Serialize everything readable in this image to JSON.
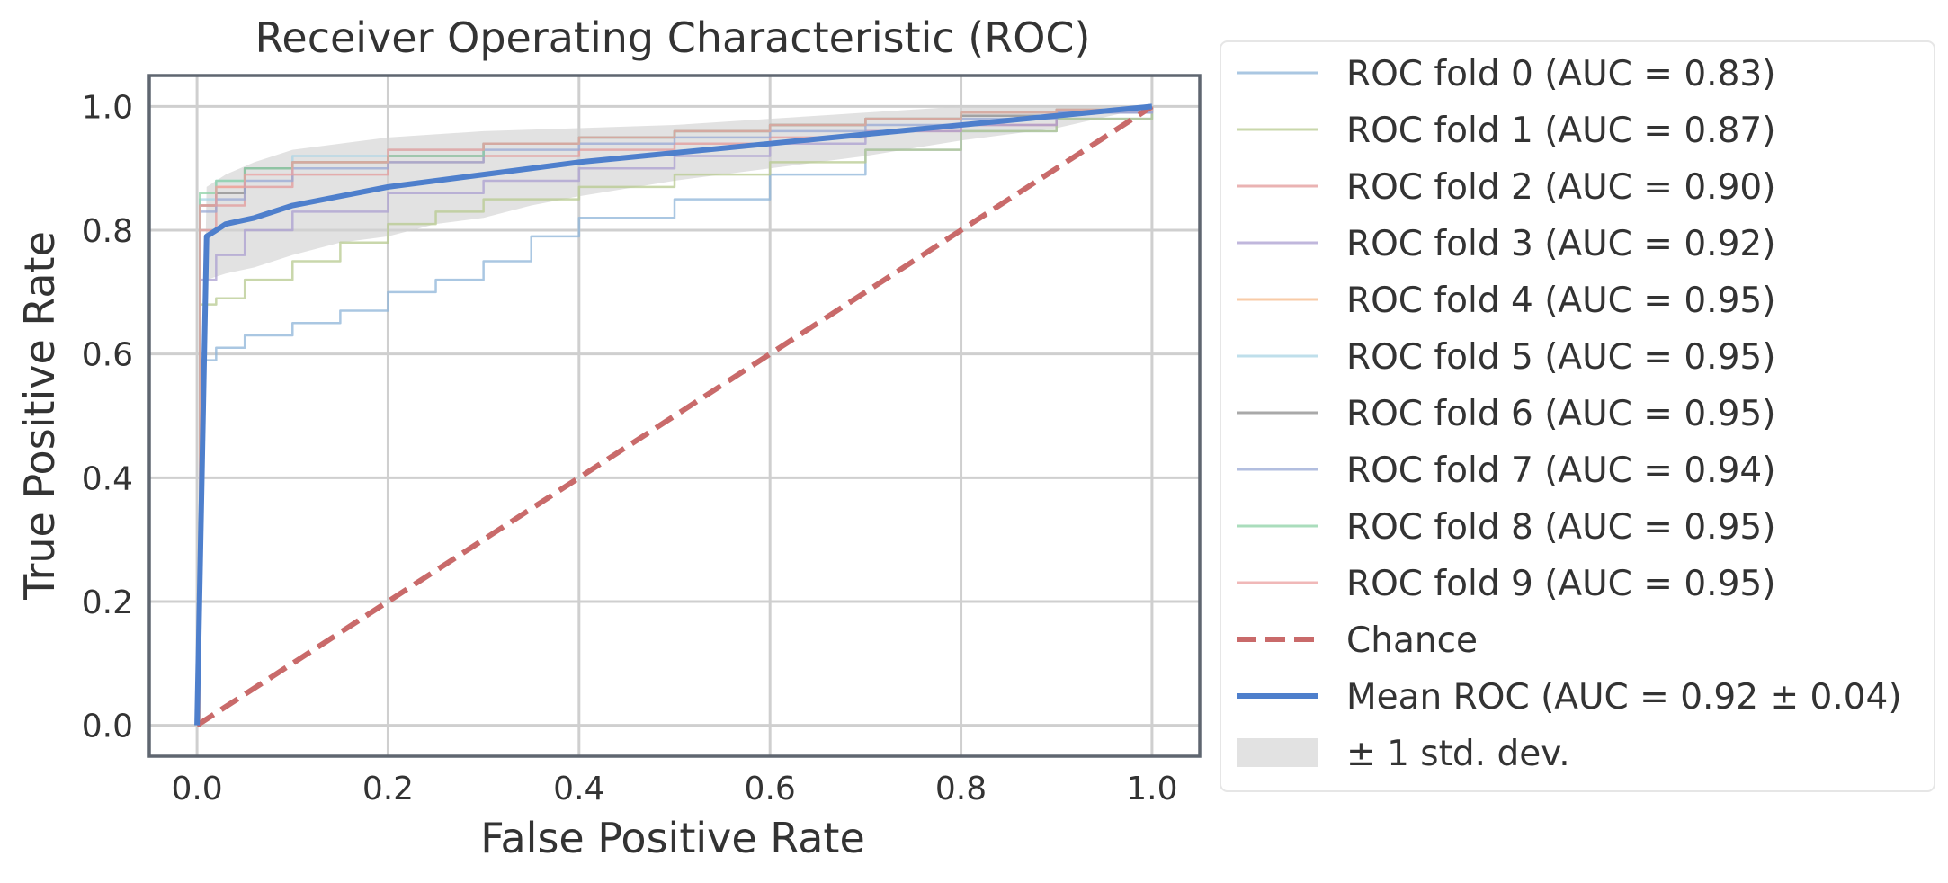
{
  "chart_data": {
    "type": "line",
    "title": "Receiver Operating Characteristic (ROC)",
    "xlabel": "False Positive Rate",
    "ylabel": "True Positive Rate",
    "xlim": [
      -0.05,
      1.05
    ],
    "ylim": [
      -0.05,
      1.05
    ],
    "xticks": [
      "0.0",
      "0.2",
      "0.4",
      "0.6",
      "0.8",
      "1.0"
    ],
    "yticks": [
      "0.0",
      "0.2",
      "0.4",
      "0.6",
      "0.8",
      "1.0"
    ],
    "grid": true,
    "legend_position": "outside-right",
    "series": [
      {
        "name": "ROC fold 0 (AUC = 0.83)",
        "color": "#8db4d8",
        "style": "thin",
        "points": [
          [
            0,
            0
          ],
          [
            0.003,
            0.59
          ],
          [
            0.02,
            0.61
          ],
          [
            0.05,
            0.63
          ],
          [
            0.1,
            0.65
          ],
          [
            0.15,
            0.67
          ],
          [
            0.2,
            0.7
          ],
          [
            0.25,
            0.72
          ],
          [
            0.3,
            0.75
          ],
          [
            0.35,
            0.79
          ],
          [
            0.4,
            0.82
          ],
          [
            0.5,
            0.85
          ],
          [
            0.6,
            0.89
          ],
          [
            0.7,
            0.93
          ],
          [
            0.8,
            0.96
          ],
          [
            0.9,
            0.98
          ],
          [
            1,
            1
          ]
        ]
      },
      {
        "name": "ROC fold 1 (AUC = 0.87)",
        "color": "#b7c98f",
        "style": "thin",
        "points": [
          [
            0,
            0
          ],
          [
            0.003,
            0.68
          ],
          [
            0.02,
            0.69
          ],
          [
            0.05,
            0.72
          ],
          [
            0.1,
            0.75
          ],
          [
            0.15,
            0.78
          ],
          [
            0.2,
            0.81
          ],
          [
            0.25,
            0.83
          ],
          [
            0.3,
            0.85
          ],
          [
            0.4,
            0.87
          ],
          [
            0.5,
            0.89
          ],
          [
            0.6,
            0.91
          ],
          [
            0.7,
            0.93
          ],
          [
            0.8,
            0.96
          ],
          [
            0.9,
            0.98
          ],
          [
            1,
            1
          ]
        ]
      },
      {
        "name": "ROC fold 2 (AUC = 0.90)",
        "color": "#e39a9a",
        "style": "thin",
        "points": [
          [
            0,
            0
          ],
          [
            0.003,
            0.8
          ],
          [
            0.02,
            0.84
          ],
          [
            0.05,
            0.87
          ],
          [
            0.1,
            0.89
          ],
          [
            0.2,
            0.91
          ],
          [
            0.3,
            0.92
          ],
          [
            0.4,
            0.93
          ],
          [
            0.5,
            0.94
          ],
          [
            0.6,
            0.95
          ],
          [
            0.7,
            0.96
          ],
          [
            0.8,
            0.97
          ],
          [
            0.9,
            0.99
          ],
          [
            1,
            1
          ]
        ]
      },
      {
        "name": "ROC fold 3 (AUC = 0.92)",
        "color": "#ab9fd0",
        "style": "thin",
        "points": [
          [
            0,
            0
          ],
          [
            0.003,
            0.72
          ],
          [
            0.02,
            0.76
          ],
          [
            0.05,
            0.8
          ],
          [
            0.1,
            0.83
          ],
          [
            0.2,
            0.86
          ],
          [
            0.3,
            0.88
          ],
          [
            0.4,
            0.9
          ],
          [
            0.5,
            0.92
          ],
          [
            0.6,
            0.94
          ],
          [
            0.7,
            0.96
          ],
          [
            0.8,
            0.97
          ],
          [
            0.9,
            0.99
          ],
          [
            1,
            1
          ]
        ]
      },
      {
        "name": "ROC fold 4 (AUC = 0.95)",
        "color": "#f5b98a",
        "style": "thin",
        "points": [
          [
            0,
            0
          ],
          [
            0.003,
            0.84
          ],
          [
            0.02,
            0.87
          ],
          [
            0.05,
            0.9
          ],
          [
            0.1,
            0.91
          ],
          [
            0.2,
            0.93
          ],
          [
            0.3,
            0.94
          ],
          [
            0.4,
            0.95
          ],
          [
            0.5,
            0.96
          ],
          [
            0.6,
            0.97
          ],
          [
            0.7,
            0.98
          ],
          [
            0.8,
            0.99
          ],
          [
            0.9,
            0.995
          ],
          [
            1,
            1
          ]
        ]
      },
      {
        "name": "ROC fold 5 (AUC = 0.95)",
        "color": "#a9d4e4",
        "style": "thin",
        "points": [
          [
            0,
            0
          ],
          [
            0.003,
            0.85
          ],
          [
            0.02,
            0.88
          ],
          [
            0.05,
            0.9
          ],
          [
            0.1,
            0.92
          ],
          [
            0.2,
            0.93
          ],
          [
            0.3,
            0.94
          ],
          [
            0.4,
            0.95
          ],
          [
            0.5,
            0.96
          ],
          [
            0.6,
            0.97
          ],
          [
            0.7,
            0.98
          ],
          [
            0.8,
            0.99
          ],
          [
            0.9,
            0.995
          ],
          [
            1,
            1
          ]
        ]
      },
      {
        "name": "ROC fold 6 (AUC = 0.95)",
        "color": "#8c8c8c",
        "style": "thin",
        "points": [
          [
            0,
            0
          ],
          [
            0.003,
            0.84
          ],
          [
            0.02,
            0.86
          ],
          [
            0.05,
            0.9
          ],
          [
            0.1,
            0.91
          ],
          [
            0.2,
            0.92
          ],
          [
            0.3,
            0.94
          ],
          [
            0.4,
            0.95
          ],
          [
            0.5,
            0.96
          ],
          [
            0.6,
            0.97
          ],
          [
            0.7,
            0.98
          ],
          [
            0.8,
            0.985
          ],
          [
            0.9,
            0.995
          ],
          [
            1,
            1
          ]
        ]
      },
      {
        "name": "ROC fold 7 (AUC = 0.94)",
        "color": "#98a8d4",
        "style": "thin",
        "points": [
          [
            0,
            0
          ],
          [
            0.003,
            0.83
          ],
          [
            0.02,
            0.85
          ],
          [
            0.05,
            0.88
          ],
          [
            0.1,
            0.9
          ],
          [
            0.2,
            0.91
          ],
          [
            0.3,
            0.93
          ],
          [
            0.4,
            0.94
          ],
          [
            0.5,
            0.95
          ],
          [
            0.6,
            0.96
          ],
          [
            0.7,
            0.97
          ],
          [
            0.8,
            0.98
          ],
          [
            0.9,
            0.99
          ],
          [
            1,
            1
          ]
        ]
      },
      {
        "name": "ROC fold 8 (AUC = 0.95)",
        "color": "#8ed1a6",
        "style": "thin",
        "points": [
          [
            0,
            0
          ],
          [
            0.003,
            0.86
          ],
          [
            0.02,
            0.88
          ],
          [
            0.05,
            0.9
          ],
          [
            0.1,
            0.91
          ],
          [
            0.2,
            0.92
          ],
          [
            0.3,
            0.94
          ],
          [
            0.4,
            0.95
          ],
          [
            0.5,
            0.96
          ],
          [
            0.6,
            0.97
          ],
          [
            0.7,
            0.98
          ],
          [
            0.8,
            0.99
          ],
          [
            0.9,
            0.995
          ],
          [
            1,
            1
          ]
        ]
      },
      {
        "name": "ROC fold 9 (AUC = 0.95)",
        "color": "#eba0a0",
        "style": "thin",
        "points": [
          [
            0,
            0
          ],
          [
            0.003,
            0.84
          ],
          [
            0.02,
            0.87
          ],
          [
            0.05,
            0.89
          ],
          [
            0.1,
            0.91
          ],
          [
            0.2,
            0.93
          ],
          [
            0.3,
            0.94
          ],
          [
            0.4,
            0.95
          ],
          [
            0.5,
            0.96
          ],
          [
            0.6,
            0.97
          ],
          [
            0.7,
            0.98
          ],
          [
            0.8,
            0.99
          ],
          [
            0.9,
            0.995
          ],
          [
            1,
            1
          ]
        ]
      },
      {
        "name": "Chance",
        "color": "#c96a6a",
        "style": "dashed",
        "points": [
          [
            0,
            0
          ],
          [
            1,
            1
          ]
        ]
      },
      {
        "name": "Mean ROC (AUC = 0.92 ± 0.04)",
        "color": "#4e7fcc",
        "style": "thick",
        "points": [
          [
            0,
            0
          ],
          [
            0.01,
            0.79
          ],
          [
            0.03,
            0.81
          ],
          [
            0.06,
            0.82
          ],
          [
            0.1,
            0.84
          ],
          [
            0.15,
            0.855
          ],
          [
            0.2,
            0.87
          ],
          [
            0.25,
            0.88
          ],
          [
            0.3,
            0.89
          ],
          [
            0.35,
            0.9
          ],
          [
            0.4,
            0.91
          ],
          [
            0.5,
            0.925
          ],
          [
            0.6,
            0.94
          ],
          [
            0.7,
            0.955
          ],
          [
            0.8,
            0.97
          ],
          [
            0.9,
            0.985
          ],
          [
            1,
            1
          ]
        ]
      }
    ],
    "std_band": {
      "name": "± 1 std. dev.",
      "color": "#d3d3d3",
      "upper": [
        [
          0,
          0
        ],
        [
          0.01,
          0.87
        ],
        [
          0.03,
          0.89
        ],
        [
          0.06,
          0.91
        ],
        [
          0.1,
          0.93
        ],
        [
          0.15,
          0.94
        ],
        [
          0.2,
          0.95
        ],
        [
          0.3,
          0.96
        ],
        [
          0.4,
          0.965
        ],
        [
          0.5,
          0.97
        ],
        [
          0.6,
          0.98
        ],
        [
          0.7,
          0.99
        ],
        [
          0.8,
          1
        ],
        [
          0.9,
          1
        ],
        [
          1,
          1
        ]
      ],
      "lower": [
        [
          0,
          0
        ],
        [
          0.01,
          0.72
        ],
        [
          0.03,
          0.73
        ],
        [
          0.06,
          0.74
        ],
        [
          0.1,
          0.76
        ],
        [
          0.15,
          0.78
        ],
        [
          0.2,
          0.79
        ],
        [
          0.25,
          0.81
        ],
        [
          0.3,
          0.82
        ],
        [
          0.35,
          0.84
        ],
        [
          0.4,
          0.855
        ],
        [
          0.5,
          0.88
        ],
        [
          0.6,
          0.9
        ],
        [
          0.7,
          0.92
        ],
        [
          0.8,
          0.945
        ],
        [
          0.9,
          0.965
        ],
        [
          1,
          1
        ]
      ]
    }
  }
}
